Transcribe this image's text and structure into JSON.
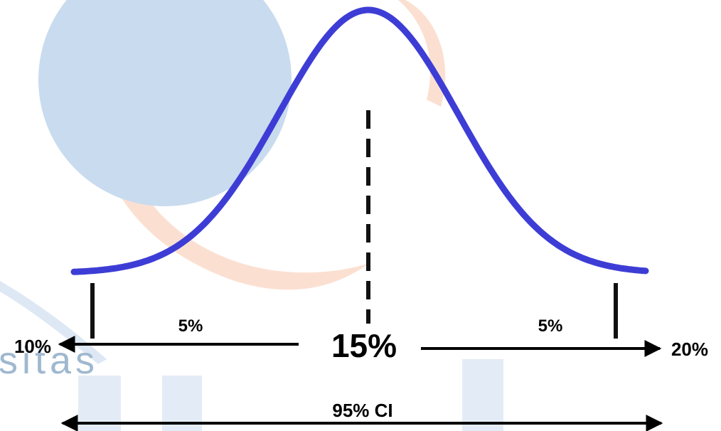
{
  "labels": {
    "left_bound": "10%",
    "center_value": "15%",
    "right_bound": "20%",
    "left_tail": "5%",
    "right_tail": "5%",
    "interval": "95% CI"
  },
  "watermark": {
    "partial_word": "sitas"
  },
  "colors": {
    "curve": "#3d3dd6",
    "ink": "#000000",
    "watermark_blue": "#c9dbee",
    "watermark_orange": "#fbe0d2",
    "watermark_ring_blue": "#dde8f4",
    "watermark_text": "#9fb8cf"
  }
}
